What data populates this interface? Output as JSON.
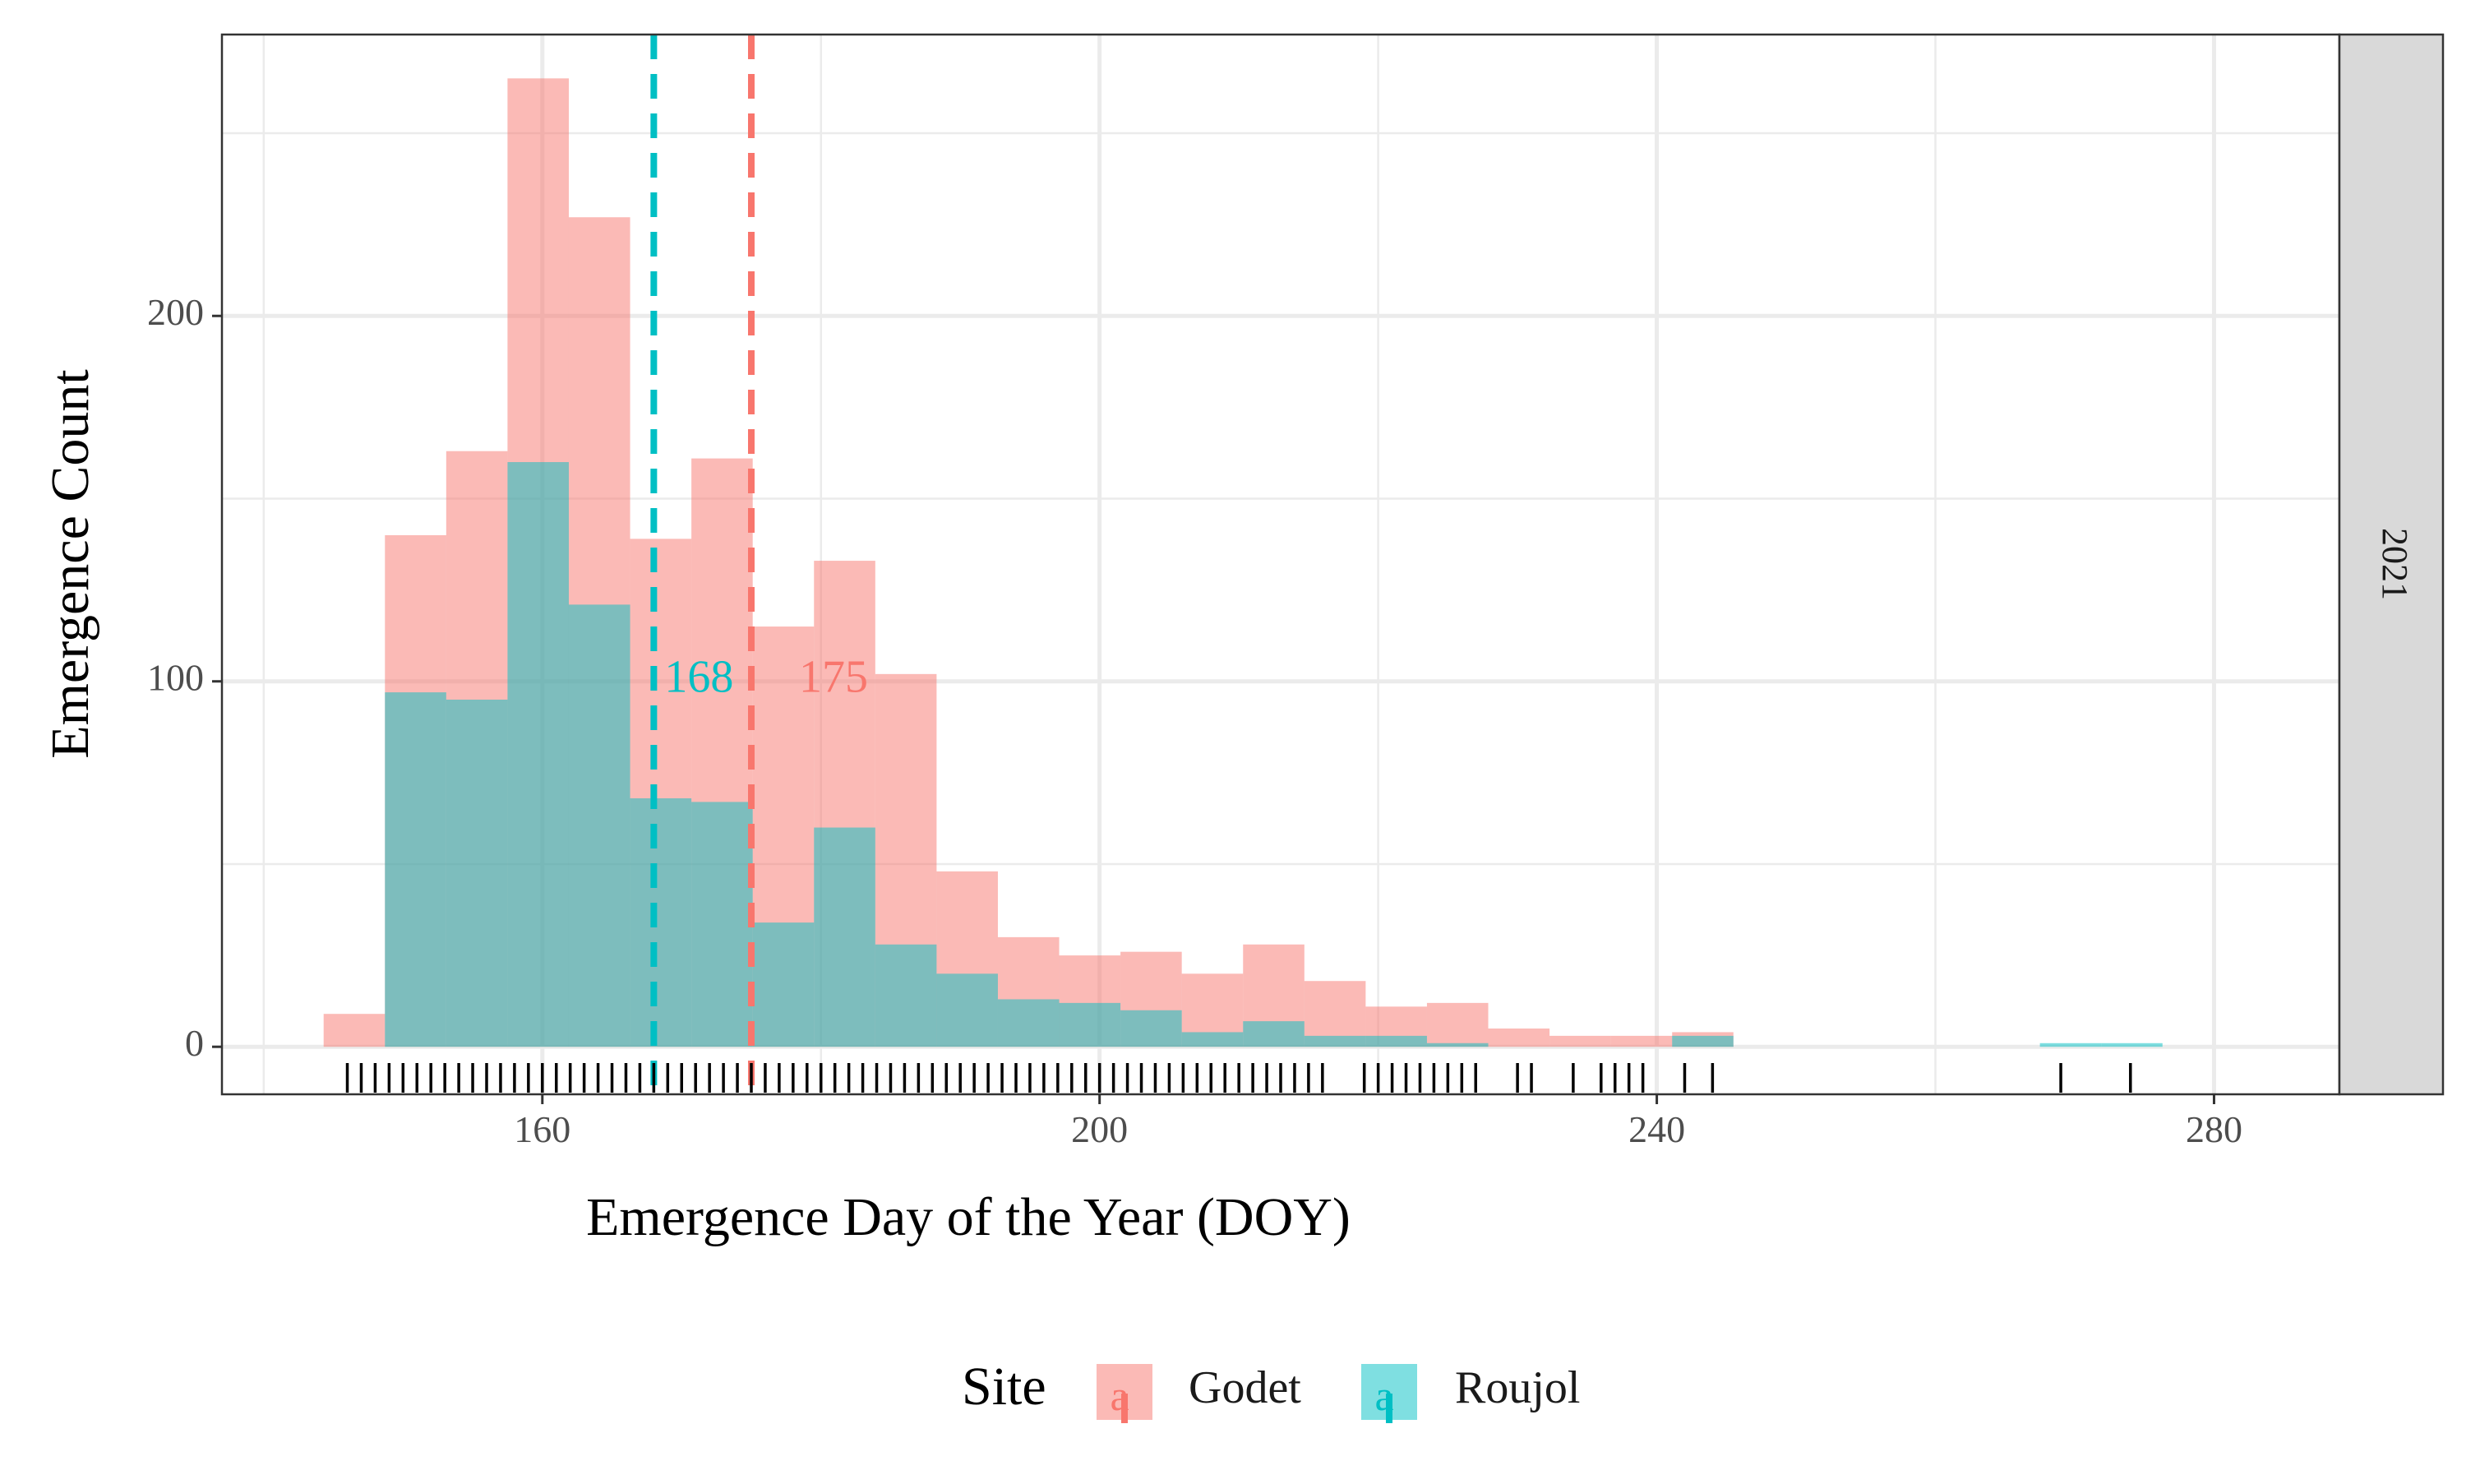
{
  "chart_data": {
    "type": "bar",
    "subtype": "overlaid-histogram",
    "title": "",
    "xlabel": "Emergence Day of the Year (DOY)",
    "ylabel": "Emergence Count",
    "xlim": [
      137,
      289
    ],
    "ylim": [
      -13,
      277
    ],
    "x_ticks": [
      160,
      200,
      240,
      280
    ],
    "y_ticks": [
      0,
      100,
      200
    ],
    "grid": true,
    "facet_label": "2021",
    "bin_width": 4.4,
    "series": [
      {
        "name": "Godet",
        "color": "#F8766D",
        "bin_starts": [
          144.3,
          148.7,
          153.1,
          157.5,
          161.9,
          166.3,
          170.7,
          175.1,
          179.5,
          183.9,
          188.3,
          192.7,
          197.1,
          201.5,
          205.9,
          210.3,
          214.7,
          219.1,
          223.5,
          227.9,
          232.3,
          236.7,
          241.1
        ],
        "values": [
          9,
          140,
          163,
          265,
          227,
          139,
          161,
          115,
          133,
          102,
          48,
          30,
          25,
          26,
          20,
          28,
          18,
          11,
          12,
          5,
          3,
          3,
          4
        ]
      },
      {
        "name": "Roujol",
        "color": "#00BFC4",
        "bin_starts": [
          148.7,
          153.1,
          157.5,
          161.9,
          166.3,
          170.7,
          175.1,
          179.5,
          183.9,
          188.3,
          192.7,
          197.1,
          201.5,
          205.9,
          210.3,
          214.7,
          219.1,
          223.5,
          241.1,
          267.5,
          271.9
        ],
        "values": [
          97,
          95,
          160,
          121,
          68,
          67,
          34,
          60,
          28,
          20,
          13,
          12,
          10,
          4,
          7,
          3,
          3,
          1,
          3,
          1,
          1
        ]
      }
    ],
    "reference_lines": [
      {
        "series": "Roujol",
        "x": 168,
        "label": "168",
        "color": "#00BFC4"
      },
      {
        "series": "Godet",
        "x": 175,
        "label": "175",
        "color": "#F8766D"
      }
    ],
    "rug_x": [
      146,
      147,
      148,
      149,
      150,
      151,
      152,
      153,
      154,
      155,
      156,
      157,
      158,
      159,
      160,
      161,
      162,
      163,
      164,
      165,
      166,
      167,
      168,
      169,
      170,
      171,
      172,
      173,
      174,
      175,
      176,
      177,
      178,
      179,
      180,
      181,
      182,
      183,
      184,
      185,
      186,
      187,
      188,
      189,
      190,
      191,
      192,
      193,
      194,
      195,
      196,
      197,
      198,
      199,
      200,
      201,
      202,
      203,
      204,
      205,
      206,
      207,
      208,
      209,
      210,
      211,
      212,
      213,
      214,
      215,
      216,
      219,
      220,
      221,
      222,
      223,
      224,
      225,
      226,
      227,
      230,
      231,
      234,
      236,
      237,
      238,
      239,
      242,
      244,
      269,
      274
    ],
    "legend": {
      "title": "Site",
      "position": "bottom",
      "entries": [
        "Godet",
        "Roujol"
      ]
    }
  }
}
